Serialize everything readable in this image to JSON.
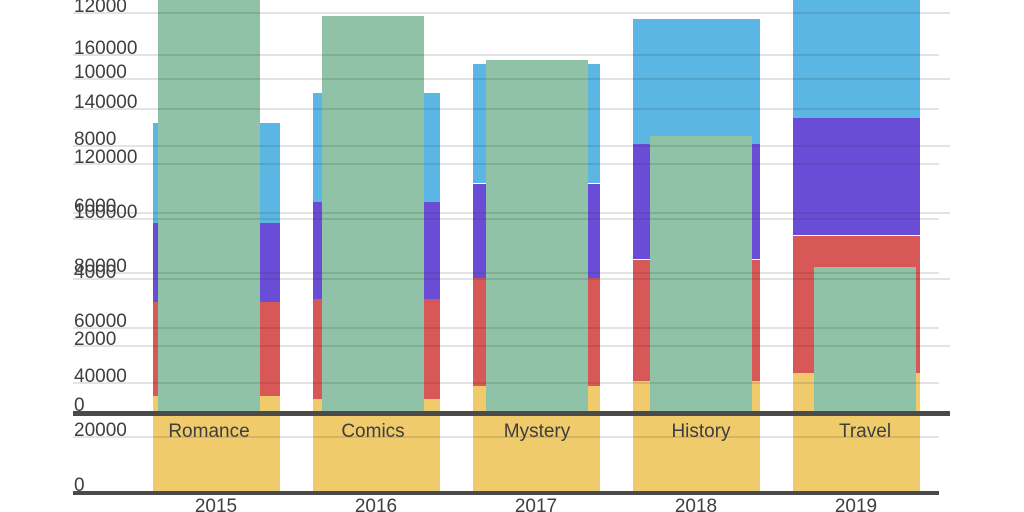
{
  "style": {
    "background_color": "#ffffff",
    "axis_text_color": "#3e3e3e",
    "grid_color": "rgba(40,40,40,0.13)",
    "axis_line_color": "#4a4a4a"
  },
  "chart_data": [
    {
      "id": "years",
      "type": "bar",
      "stacked": true,
      "layer": "back",
      "title": "",
      "xlabel": "",
      "ylabel": "",
      "legend_position": "none",
      "grid": true,
      "categories": [
        "2015",
        "2016",
        "2017",
        "2018",
        "2019"
      ],
      "series": [
        {
          "name": "yellow-segment",
          "color": "#EFCB6C",
          "values": [
            35200,
            34100,
            38800,
            40700,
            43600
          ]
        },
        {
          "name": "red-segment",
          "color": "#D85858",
          "values": [
            34400,
            36600,
            39600,
            44300,
            50200
          ]
        },
        {
          "name": "purple-segment",
          "color": "#6A4DD6",
          "values": [
            28900,
            35500,
            34400,
            42100,
            42900
          ]
        },
        {
          "name": "blue-segment",
          "color": "#5BB6E3",
          "values": [
            36300,
            39600,
            43600,
            45800,
            50000
          ]
        }
      ],
      "ylim": [
        0,
        180000
      ],
      "ytick_values": [
        0,
        20000,
        40000,
        60000,
        80000,
        100000,
        120000,
        140000,
        160000
      ],
      "ytick_labels": [
        "0",
        "20000",
        "40000",
        "60000",
        "80000",
        "100000",
        "120000",
        "140000",
        "160000"
      ]
    },
    {
      "id": "genres",
      "type": "bar",
      "stacked": true,
      "layer": "front",
      "title": "",
      "xlabel": "",
      "ylabel": "",
      "legend_position": "none",
      "grid": true,
      "categories": [
        "Romance",
        "Comics",
        "Mystery",
        "History",
        "Travel"
      ],
      "series": [
        {
          "name": "green-segment",
          "color": "#8FC2A6",
          "values": [
            12600,
            11900,
            10600,
            8300,
            4350
          ]
        }
      ],
      "ylim": [
        0,
        12000
      ],
      "ytick_values": [
        0,
        2000,
        4000,
        6000,
        8000,
        10000,
        12000
      ],
      "ytick_labels": [
        "0",
        "2000",
        "4000",
        "6000",
        "8000",
        "10000",
        "12000"
      ]
    }
  ]
}
